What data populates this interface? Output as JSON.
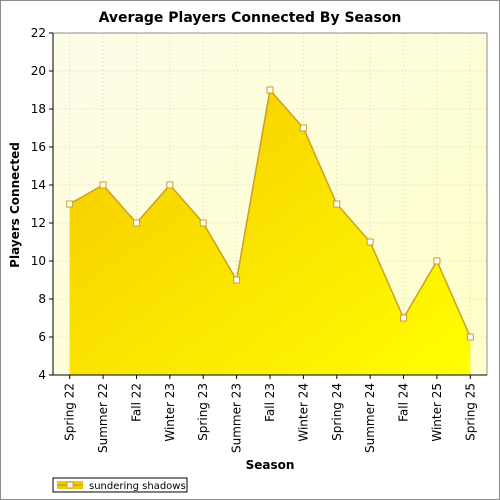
{
  "chart_data": {
    "type": "area",
    "title": "Average Players Connected By Season",
    "xlabel": "Season",
    "ylabel": "Players Connected",
    "categories": [
      "Spring 22",
      "Summer 22",
      "Fall 22",
      "Winter 23",
      "Spring 23",
      "Summer 23",
      "Fall 23",
      "Winter 24",
      "Spring 24",
      "Summer 24",
      "Fall 24",
      "Winter 25",
      "Spring 25"
    ],
    "series": [
      {
        "name": "sundering shadows",
        "values": [
          13,
          14,
          12,
          14,
          12,
          9,
          19,
          17,
          13,
          11,
          7,
          10,
          6
        ]
      }
    ],
    "ylim": [
      4,
      22
    ],
    "yticks": [
      4,
      6,
      8,
      10,
      12,
      14,
      16,
      18,
      20,
      22
    ],
    "grid": true,
    "legend": "bottom-left",
    "colors": {
      "fill_top": "#f5c800",
      "fill_bottom": "#ffff00",
      "line": "#c8a02a",
      "marker_fill": "#ffffff",
      "plot_bg_top": "#fdfce8",
      "plot_bg_bottom": "#ffffc8"
    }
  }
}
